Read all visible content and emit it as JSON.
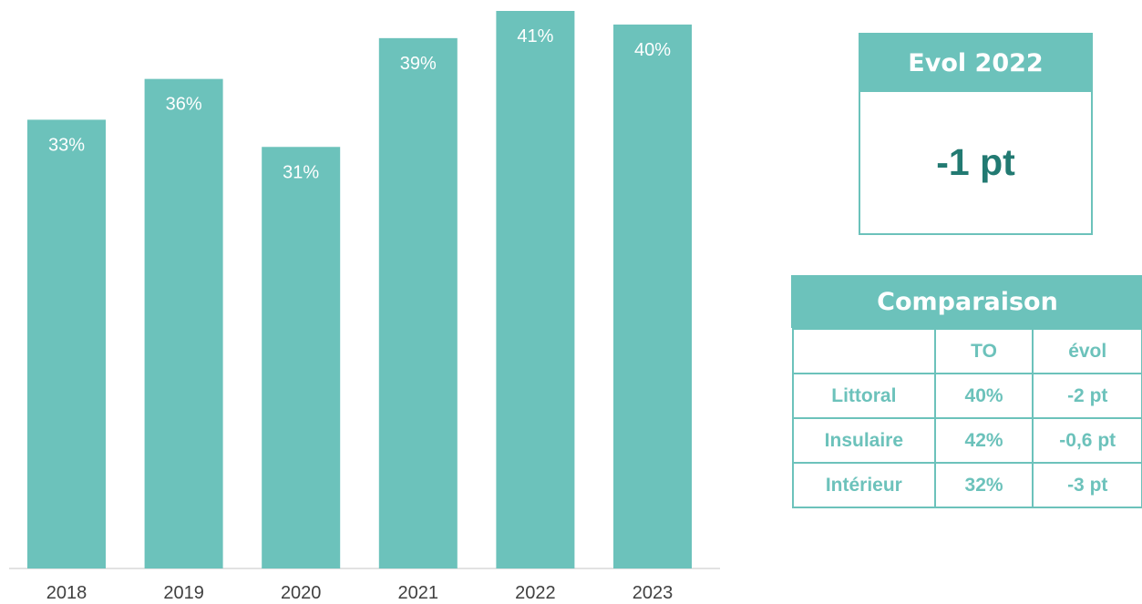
{
  "chart_data": {
    "type": "bar",
    "categories": [
      "2018",
      "2019",
      "2020",
      "2021",
      "2022",
      "2023"
    ],
    "values": [
      33,
      36,
      31,
      39,
      41,
      40
    ],
    "data_labels": [
      "33%",
      "36%",
      "31%",
      "39%",
      "41%",
      "40%"
    ],
    "title": "",
    "xlabel": "",
    "ylabel": "",
    "ylim": [
      0,
      41
    ],
    "grid": false,
    "legend": "none",
    "bar_color": "#6cc2bb"
  },
  "evol": {
    "title": "Evol 2022",
    "value": "-1 pt"
  },
  "comparison": {
    "title": "Comparaison",
    "headers": [
      "",
      "TO",
      "évol"
    ],
    "rows": [
      [
        "Littoral",
        "40%",
        "-2 pt"
      ],
      [
        "Insulaire",
        "42%",
        "-0,6 pt"
      ],
      [
        "Intérieur",
        "32%",
        "-3 pt"
      ]
    ]
  },
  "colors": {
    "accent": "#6cc2bb",
    "dark_accent": "#227a72"
  }
}
